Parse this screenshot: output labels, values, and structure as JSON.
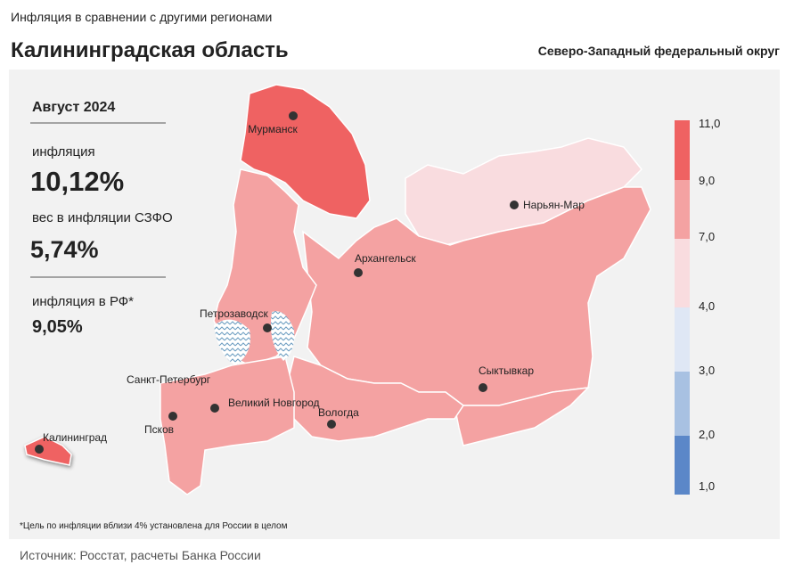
{
  "header": {
    "subtitle": "Инфляция в сравнении с другими регионами",
    "title": "Калининградская область",
    "district": "Северо-Западный федеральный округ"
  },
  "panel": {
    "period": "Август 2024",
    "inflation_label": "инфляция",
    "inflation_value": "10,12%",
    "weight_label": "вес в инфляции СЗФО",
    "weight_value": "5,74%",
    "rf_label": "инфляция в РФ*",
    "rf_value": "9,05%"
  },
  "map": {
    "cities": [
      "Мурманск",
      "Нарьян-Мар",
      "Архангельск",
      "Петрозаводск",
      "Сыктывкар",
      "Санкт-Петербург",
      "Великий Новгород",
      "Вологда",
      "Псков",
      "Калининград"
    ]
  },
  "legend": {
    "labels": [
      "11,0",
      "9,0",
      "7,0",
      "4,0",
      "3,0",
      "2,0",
      "1,0"
    ],
    "colors": [
      "#ef6262",
      "#f4a2a2",
      "#f9dcdf",
      "#dfe7f5",
      "#a8c1e2",
      "#5b87c8"
    ]
  },
  "footnote": "*Цель по инфляции вблизи 4% установлена для России в целом",
  "source": "Источник: Росстат, расчеты Банка России"
}
